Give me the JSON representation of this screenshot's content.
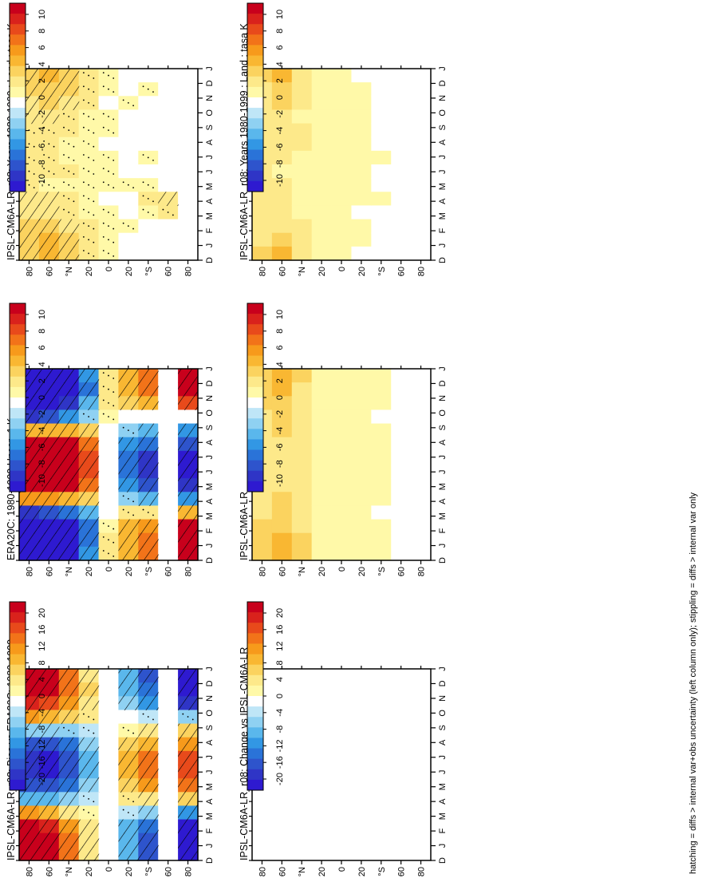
{
  "figure": {
    "footnote": "hatching = diffs > internal var+obs uncertainty (left column only); stippling = diffs > internal var only"
  },
  "colors": {
    "warm": [
      "#fff9a8",
      "#fde98a",
      "#fbd35f",
      "#f9b732",
      "#f79a1b",
      "#f27319",
      "#e84a1b",
      "#d9221c",
      "#c8001c"
    ],
    "cool": [
      "#bfe6f7",
      "#8fd1f2",
      "#5ab7ec",
      "#3297e4",
      "#2a73d8",
      "#2e54cc",
      "#2f35c6",
      "#2e1ad0"
    ],
    "white": "#ffffff"
  },
  "chart_data": [
    {
      "id": "p11",
      "type": "heatmap",
      "title": "IPSL-CM6A-LR_r08: Years 1980-1999 : Land : tasa K",
      "x_ticks": [
        "D",
        "J",
        "F",
        "M",
        "A",
        "M",
        "J",
        "J",
        "A",
        "S",
        "O",
        "N",
        "D",
        "J"
      ],
      "y_ticks": [
        "80",
        "60",
        "°N",
        "20",
        "0",
        "20",
        "°S",
        "60",
        "80"
      ],
      "colorbar": {
        "labels": [
          "10",
          "8",
          "6",
          "4",
          "2",
          "0",
          "-2",
          "-4",
          "-6",
          "-8",
          "-10"
        ],
        "range": [
          -10,
          10
        ]
      },
      "hatching": true,
      "stippling": true,
      "values": [
        [
          2,
          2,
          1.5,
          1.5,
          1,
          1,
          1,
          1,
          1,
          1.5,
          1.5,
          2,
          2,
          2
        ],
        [
          3,
          2,
          2,
          1.5,
          1,
          1,
          1,
          1,
          0.5,
          1.5,
          1.5,
          2,
          3,
          3
        ],
        [
          2,
          2,
          1.5,
          1,
          1,
          0.5,
          0.5,
          1,
          0.5,
          1,
          1,
          1.5,
          2,
          2
        ],
        [
          1,
          1,
          1,
          0.5,
          0.5,
          0.5,
          0.5,
          0.5,
          0.5,
          0.5,
          0.5,
          1,
          1,
          1
        ],
        [
          0.5,
          0.5,
          0,
          0.5,
          0.5,
          0,
          0.5,
          0.5,
          0.5,
          0,
          0.5,
          0.5,
          0.5,
          0.5
        ],
        [
          0,
          0,
          0.5,
          0,
          0,
          0,
          0,
          0,
          0.5,
          0,
          0,
          0.5,
          0,
          0
        ],
        [
          0,
          0.5,
          0,
          0,
          0,
          0,
          0.5,
          0,
          0.5,
          1,
          0.5,
          0,
          0,
          0
        ],
        [
          0,
          0,
          0,
          0,
          0,
          0,
          0,
          0,
          0,
          1.5,
          1,
          0,
          0,
          0
        ],
        [
          0,
          0,
          0,
          0,
          0,
          0,
          0,
          0,
          0,
          0,
          0,
          0,
          0,
          0
        ]
      ]
    },
    {
      "id": "p12",
      "type": "heatmap",
      "title": "IPSL-CM6A-LR_r08: Years 1980-1999 : Land : tasa K",
      "x_ticks": [
        "D",
        "J",
        "F",
        "M",
        "A",
        "M",
        "J",
        "J",
        "A",
        "S",
        "O",
        "N",
        "D",
        "J"
      ],
      "y_ticks": [
        "80",
        "60",
        "°N",
        "20",
        "0",
        "20",
        "°S",
        "60",
        "80"
      ],
      "colorbar": {
        "labels": [
          "10",
          "8",
          "6",
          "4",
          "2",
          "0",
          "-2",
          "-4",
          "-6",
          "-8",
          "-10"
        ],
        "range": [
          -10,
          10
        ]
      },
      "hatching": false,
      "stippling": false,
      "values": [
        [
          2,
          1.5,
          1.5,
          1,
          1,
          1,
          1,
          1,
          1,
          1,
          1,
          1,
          1.5,
          2
        ],
        [
          3,
          2.5,
          2,
          1.5,
          1,
          1,
          1,
          0.5,
          1,
          1,
          1,
          1.5,
          2,
          3
        ],
        [
          1.5,
          1,
          1,
          0.5,
          1,
          1,
          0.5,
          0.5,
          0.5,
          0.5,
          0.5,
          1,
          1.5,
          1.5
        ],
        [
          0.5,
          0.5,
          0.5,
          0.5,
          0.5,
          0.5,
          0.5,
          0.5,
          0.5,
          0.5,
          0.5,
          0.5,
          0.5,
          0.5
        ],
        [
          0.5,
          0.5,
          0.5,
          0.5,
          0.5,
          0.5,
          0.5,
          0.5,
          0.5,
          0.5,
          0.5,
          0.5,
          0.5,
          0.5
        ],
        [
          0,
          0.5,
          0.5,
          0.5,
          0.5,
          0.5,
          0.5,
          0.5,
          0.5,
          0.5,
          0,
          0.5,
          0.5,
          0
        ],
        [
          0,
          0,
          0,
          0,
          0,
          0,
          0.5,
          0,
          0,
          0.5,
          0,
          0,
          0,
          0
        ],
        [
          0,
          0,
          0,
          0,
          0,
          0,
          0,
          0,
          0,
          0,
          0,
          0,
          0,
          0
        ],
        [
          0,
          0,
          0,
          0,
          0,
          0,
          0,
          0,
          0,
          0,
          0,
          0,
          0,
          0
        ]
      ]
    },
    {
      "id": "p21",
      "type": "heatmap",
      "title": "ERA20C: 1980-1999 Uncer=1 K",
      "x_ticks": [
        "D",
        "J",
        "F",
        "M",
        "A",
        "M",
        "J",
        "J",
        "A",
        "S",
        "O",
        "N",
        "D",
        "J"
      ],
      "y_ticks": [
        "80",
        "60",
        "°N",
        "20",
        "0",
        "20",
        "°S",
        "60",
        "80"
      ],
      "colorbar": {
        "labels": [
          "10",
          "8",
          "6",
          "4",
          "2",
          "0",
          "-2",
          "-4",
          "-6",
          "-8",
          "-10"
        ],
        "range": [
          -10,
          10
        ]
      },
      "hatching": true,
      "stippling": true,
      "values": [
        [
          -11,
          -11,
          -9,
          -6,
          3,
          9,
          10,
          10,
          9,
          4,
          -6,
          -11,
          -11,
          -11
        ],
        [
          -10,
          -10,
          -8,
          -5,
          3,
          9,
          10,
          10,
          9,
          4,
          -5,
          -10,
          -10,
          -10
        ],
        [
          -7,
          -8,
          -6,
          -3,
          3,
          8,
          9,
          9,
          8,
          3,
          -4,
          -8,
          -8,
          -7
        ],
        [
          -3,
          -4,
          -2,
          -1,
          2,
          5,
          6,
          6,
          5,
          2,
          -2,
          -4,
          -4,
          -3
        ],
        [
          1,
          1,
          1,
          0.5,
          0,
          0,
          0,
          0,
          0,
          0,
          0,
          0.5,
          1,
          1
        ],
        [
          3,
          3,
          2,
          0,
          -1,
          -3,
          -4,
          -4,
          -3,
          -1,
          1,
          3,
          3,
          3
        ],
        [
          5,
          5,
          3,
          0,
          -2,
          -4,
          -6,
          -6,
          -5,
          -2,
          1,
          4,
          5,
          5
        ],
        [
          0,
          0,
          0,
          0,
          0,
          0,
          0,
          0,
          0,
          0,
          0,
          0,
          0,
          0
        ],
        [
          9,
          10,
          6,
          0,
          -3,
          -5,
          -7,
          -7,
          -6,
          -3,
          3,
          8,
          9,
          9
        ]
      ]
    },
    {
      "id": "p22",
      "type": "heatmap",
      "title": "IPSL-CM6A-LR",
      "x_ticks": [
        "D",
        "J",
        "F",
        "M",
        "A",
        "M",
        "J",
        "J",
        "A",
        "S",
        "O",
        "N",
        "D",
        "J"
      ],
      "y_ticks": [
        "80",
        "60",
        "°N",
        "20",
        "0",
        "20",
        "°S",
        "60",
        "80"
      ],
      "colorbar": {
        "labels": [
          "10",
          "8",
          "6",
          "4",
          "2",
          "0",
          "-2",
          "-4",
          "-6",
          "-8",
          "-10"
        ],
        "range": [
          -10,
          10
        ]
      },
      "hatching": false,
      "stippling": false,
      "values": [
        [
          2,
          2,
          2,
          1.5,
          1.5,
          1.5,
          1.5,
          1.5,
          1.5,
          1.5,
          1.5,
          2,
          2,
          2
        ],
        [
          3,
          3,
          2.5,
          2,
          2,
          1.5,
          1.5,
          1.5,
          1.5,
          2,
          2,
          2.5,
          3,
          3
        ],
        [
          2,
          1.5,
          1.5,
          1,
          1,
          1,
          1,
          1,
          1,
          1,
          1,
          1.5,
          2,
          2
        ],
        [
          0.5,
          0.5,
          0.5,
          0.5,
          0.5,
          0.5,
          0.5,
          0.5,
          0.5,
          0.5,
          0.5,
          0.5,
          0.5,
          0.5
        ],
        [
          0.5,
          0.5,
          0.5,
          0.5,
          0.5,
          0.5,
          0.5,
          0.5,
          0.5,
          0.5,
          0.5,
          0.5,
          0.5,
          0.5
        ],
        [
          0.5,
          0.5,
          0.5,
          0.5,
          0.5,
          0.5,
          0.5,
          0.5,
          0.5,
          0.5,
          0.5,
          0.5,
          0.5,
          0.5
        ],
        [
          0.5,
          0.5,
          0.5,
          0,
          0.5,
          0.5,
          0.5,
          0.5,
          0.5,
          0.5,
          0,
          0.5,
          0.5,
          0.5
        ],
        [
          0,
          0,
          0,
          0,
          0,
          0,
          0,
          0,
          0,
          0,
          0,
          0,
          0,
          0
        ],
        [
          0,
          0,
          0,
          0,
          0,
          0,
          0,
          0,
          0,
          0,
          0,
          0,
          0,
          0
        ]
      ]
    },
    {
      "id": "p31",
      "type": "heatmap",
      "title": "IPSL-CM6A-LR_r08: Bias vs ERA20C: 1980-1999",
      "x_ticks": [
        "D",
        "J",
        "F",
        "M",
        "A",
        "M",
        "J",
        "J",
        "A",
        "S",
        "O",
        "N",
        "D",
        "J"
      ],
      "y_ticks": [
        "80",
        "60",
        "°N",
        "20",
        "0",
        "20",
        "°S",
        "60",
        "80"
      ],
      "colorbar": {
        "labels": [
          "20",
          "16",
          "12",
          "8",
          "4",
          "0",
          "-4",
          "-8",
          "-12",
          "-16",
          "-20"
        ],
        "range": [
          -20,
          20
        ]
      },
      "hatching": true,
      "stippling": true,
      "values": [
        [
          18,
          18,
          14,
          8,
          -3,
          -10,
          -12,
          -12,
          -10,
          -4,
          8,
          16,
          18,
          18
        ],
        [
          16,
          16,
          12,
          6,
          -3,
          -10,
          -14,
          -14,
          -11,
          -4,
          6,
          14,
          16,
          16
        ],
        [
          10,
          10,
          8,
          4,
          -2,
          -8,
          -10,
          -10,
          -8,
          -3,
          3,
          9,
          10,
          10
        ],
        [
          3,
          4,
          3,
          2,
          -1,
          -3,
          -4,
          -4,
          -3,
          -1,
          1,
          3,
          3,
          3
        ],
        [
          0,
          0,
          0,
          0,
          0,
          0,
          0,
          0,
          0,
          0,
          0,
          0,
          0,
          0
        ],
        [
          -4,
          -4,
          -3,
          0,
          1,
          4,
          6,
          6,
          5,
          2,
          -1,
          -4,
          -4,
          -4
        ],
        [
          -10,
          -9,
          -6,
          -1,
          3,
          7,
          10,
          10,
          8,
          3,
          -3,
          -8,
          -10,
          -10
        ],
        [
          0,
          0,
          0,
          0,
          0,
          0,
          0,
          0,
          0,
          0,
          0,
          0,
          0,
          0
        ],
        [
          -18,
          -18,
          -12,
          -2,
          5,
          9,
          12,
          12,
          10,
          4,
          -6,
          -14,
          -18,
          -18
        ]
      ]
    },
    {
      "id": "p32",
      "type": "heatmap",
      "title": "IPSL-CM6A-LR_r08: Change vs IPSL-CM6A-LR",
      "x_ticks": [
        "D",
        "J",
        "F",
        "M",
        "A",
        "M",
        "J",
        "J",
        "A",
        "S",
        "O",
        "N",
        "D",
        "J"
      ],
      "y_ticks": [
        "80",
        "60",
        "°N",
        "20",
        "0",
        "20",
        "°S",
        "60",
        "80"
      ],
      "colorbar": {
        "labels": [
          "20",
          "16",
          "12",
          "8",
          "4",
          "0",
          "-4",
          "-8",
          "-12",
          "-16",
          "-20"
        ],
        "range": [
          -20,
          20
        ]
      },
      "hatching": false,
      "stippling": false,
      "values": [
        [
          0,
          0,
          0,
          0,
          0,
          0,
          0,
          0,
          0,
          0,
          0,
          0,
          0,
          0
        ],
        [
          0,
          0,
          0,
          0,
          0,
          0,
          0,
          0,
          0,
          0,
          0,
          0,
          0,
          0
        ],
        [
          0,
          0,
          0,
          0,
          0,
          0,
          0,
          0,
          0,
          0,
          0,
          0,
          0,
          0
        ],
        [
          0,
          0,
          0,
          0,
          0,
          0,
          0,
          0,
          0,
          0,
          0,
          0,
          0,
          0
        ],
        [
          0,
          0,
          0,
          0,
          0,
          0,
          0,
          0,
          0,
          0,
          0,
          0,
          0,
          0
        ],
        [
          0,
          0,
          0,
          0,
          0,
          0,
          0,
          0,
          0,
          0,
          0,
          0,
          0,
          0
        ],
        [
          0,
          0,
          0,
          0,
          0,
          0,
          0,
          0,
          0,
          0,
          0,
          0,
          0,
          0
        ],
        [
          0,
          0,
          0,
          0,
          0,
          0,
          0,
          0,
          0,
          0,
          0,
          0,
          0,
          0
        ],
        [
          0,
          0,
          0,
          0,
          0,
          0,
          0,
          0,
          0,
          0,
          0,
          0,
          0,
          0
        ]
      ]
    }
  ]
}
